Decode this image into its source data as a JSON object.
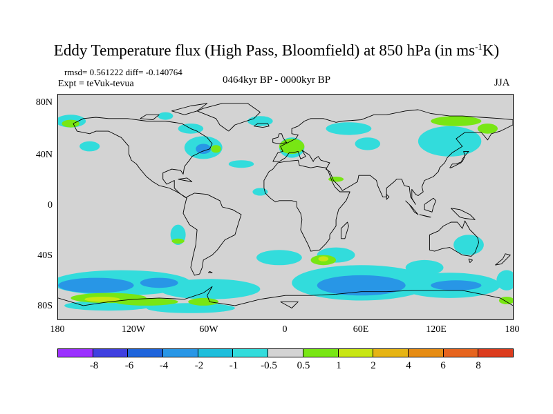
{
  "header": {
    "title_main": "Eddy Temperature flux (High Pass, Bloomfield) at 850 hPa (in ms",
    "title_sup": "-1",
    "title_end": "K)",
    "stats": "rmsd= 0.561222 diff= -0.140764",
    "expt": "Expt = teVuk-tevua",
    "period": "0464kyr BP - 0000kyr BP",
    "season": "JJA"
  },
  "axes": {
    "lat_labels": [
      "80N",
      "40N",
      "0",
      "40S",
      "80S"
    ],
    "lon_labels": [
      "180",
      "120W",
      "60W",
      "0",
      "60E",
      "120E",
      "180"
    ]
  },
  "colorbar": {
    "labels": [
      "-8",
      "-6",
      "-4",
      "-2",
      "-1",
      "-0.5",
      "0.5",
      "1",
      "2",
      "4",
      "6",
      "8"
    ],
    "colors": [
      "#9b30ff",
      "#4040e0",
      "#1e64dc",
      "#2896e6",
      "#1ebedc",
      "#32dcdc",
      "#d3d3d3",
      "#78e614",
      "#c8e614",
      "#e6b414",
      "#e68c14",
      "#e6641e",
      "#dc3c1e"
    ]
  },
  "map": {
    "background": "#d3d3d3",
    "regions": [
      {
        "color": "#32dcdc",
        "ellipses": [
          [
            -170,
            68,
            12,
            5
          ],
          [
            -75,
            62,
            10,
            4
          ],
          [
            -20,
            68,
            10,
            4
          ],
          [
            -65,
            47,
            15,
            9
          ],
          [
            5,
            47,
            10,
            8
          ],
          [
            50,
            62,
            18,
            5
          ],
          [
            130,
            52,
            25,
            12
          ],
          [
            65,
            50,
            10,
            5
          ],
          [
            -35,
            34,
            10,
            3
          ],
          [
            -95,
            72,
            6,
            3
          ],
          [
            -155,
            48,
            8,
            4
          ],
          [
            -20,
            12,
            6,
            3
          ],
          [
            -85,
            -22,
            6,
            8
          ],
          [
            40,
            -38,
            15,
            6
          ],
          [
            60,
            -60,
            55,
            14
          ],
          [
            130,
            -62,
            40,
            10
          ],
          [
            -130,
            -60,
            55,
            10
          ],
          [
            -60,
            -65,
            40,
            8
          ],
          [
            145,
            -30,
            12,
            8
          ],
          [
            110,
            -48,
            15,
            6
          ],
          [
            -5,
            -40,
            18,
            6
          ],
          [
            -140,
            -78,
            35,
            4
          ],
          [
            -75,
            -80,
            35,
            4
          ],
          [
            175,
            -58,
            8,
            8
          ]
        ]
      },
      {
        "color": "#2896e6",
        "ellipses": [
          [
            60,
            -62,
            35,
            8
          ],
          [
            -150,
            -62,
            30,
            6
          ],
          [
            -100,
            -60,
            15,
            4
          ],
          [
            -65,
            46,
            6,
            4
          ],
          [
            135,
            -62,
            20,
            4
          ]
        ]
      },
      {
        "color": "#78e614",
        "ellipses": [
          [
            -170,
            66,
            7,
            3
          ],
          [
            135,
            68,
            20,
            4
          ],
          [
            160,
            62,
            8,
            4
          ],
          [
            5,
            48,
            10,
            6
          ],
          [
            30,
            -42,
            10,
            4
          ],
          [
            -140,
            -72,
            30,
            4
          ],
          [
            -110,
            -75,
            25,
            3
          ],
          [
            -85,
            -27,
            5,
            2
          ],
          [
            -65,
            -75,
            12,
            3
          ],
          [
            175,
            -74,
            6,
            3
          ],
          [
            -55,
            46,
            4,
            3
          ],
          [
            40,
            22,
            6,
            2
          ]
        ]
      },
      {
        "color": "#c8e614",
        "ellipses": [
          [
            -145,
            -73,
            14,
            2
          ],
          [
            30,
            -41,
            4,
            2
          ]
        ]
      }
    ]
  },
  "coastlines": [
    [
      [
        -168,
        66
      ],
      [
        -160,
        70
      ],
      [
        -150,
        71
      ],
      [
        -140,
        70
      ],
      [
        -125,
        70
      ],
      [
        -110,
        68
      ],
      [
        -95,
        68
      ],
      [
        -82,
        66
      ],
      [
        -75,
        62
      ],
      [
        -70,
        60
      ],
      [
        -62,
        55
      ],
      [
        -58,
        50
      ],
      [
        -60,
        46
      ],
      [
        -66,
        44
      ],
      [
        -70,
        42
      ],
      [
        -74,
        40
      ],
      [
        -76,
        37
      ],
      [
        -80,
        32
      ],
      [
        -81,
        26
      ],
      [
        -83,
        29
      ],
      [
        -90,
        30
      ],
      [
        -97,
        27
      ],
      [
        -97,
        22
      ],
      [
        -94,
        18
      ],
      [
        -88,
        21
      ],
      [
        -88,
        15
      ],
      [
        -84,
        11
      ],
      [
        -80,
        8
      ],
      [
        -78,
        7
      ],
      [
        -81,
        9
      ],
      [
        -86,
        12
      ],
      [
        -92,
        15
      ],
      [
        -100,
        17
      ],
      [
        -105,
        20
      ],
      [
        -110,
        24
      ],
      [
        -115,
        30
      ],
      [
        -118,
        34
      ],
      [
        -122,
        37
      ],
      [
        -124,
        42
      ],
      [
        -124,
        48
      ],
      [
        -130,
        55
      ],
      [
        -140,
        60
      ],
      [
        -150,
        60
      ],
      [
        -155,
        58
      ],
      [
        -165,
        60
      ],
      [
        -168,
        66
      ]
    ],
    [
      [
        -78,
        8
      ],
      [
        -72,
        11
      ],
      [
        -62,
        10
      ],
      [
        -52,
        5
      ],
      [
        -50,
        0
      ],
      [
        -42,
        -2
      ],
      [
        -35,
        -6
      ],
      [
        -37,
        -12
      ],
      [
        -40,
        -22
      ],
      [
        -48,
        -26
      ],
      [
        -54,
        -34
      ],
      [
        -58,
        -38
      ],
      [
        -65,
        -42
      ],
      [
        -66,
        -48
      ],
      [
        -68,
        -53
      ],
      [
        -72,
        -54
      ],
      [
        -75,
        -48
      ],
      [
        -73,
        -38
      ],
      [
        -71,
        -30
      ],
      [
        -70,
        -18
      ],
      [
        -76,
        -14
      ],
      [
        -81,
        -5
      ],
      [
        -80,
        0
      ],
      [
        -78,
        8
      ]
    ],
    [
      [
        -45,
        60
      ],
      [
        -40,
        65
      ],
      [
        -25,
        70
      ],
      [
        -20,
        75
      ],
      [
        -30,
        82
      ],
      [
        -50,
        82
      ],
      [
        -65,
        78
      ],
      [
        -70,
        76
      ],
      [
        -55,
        70
      ],
      [
        -52,
        65
      ],
      [
        -45,
        60
      ]
    ],
    [
      [
        -10,
        36
      ],
      [
        -6,
        43
      ],
      [
        -2,
        44
      ],
      [
        -4,
        48
      ],
      [
        2,
        51
      ],
      [
        8,
        54
      ],
      [
        10,
        57
      ],
      [
        5,
        58
      ],
      [
        5,
        62
      ],
      [
        10,
        64
      ],
      [
        15,
        68
      ],
      [
        20,
        70
      ],
      [
        30,
        70
      ],
      [
        40,
        67
      ],
      [
        45,
        68
      ],
      [
        60,
        69
      ],
      [
        70,
        73
      ],
      [
        80,
        73
      ],
      [
        95,
        76
      ],
      [
        105,
        77
      ],
      [
        115,
        74
      ],
      [
        130,
        72
      ],
      [
        140,
        72
      ],
      [
        155,
        71
      ],
      [
        170,
        70
      ],
      [
        180,
        69
      ],
      [
        180,
        65
      ],
      [
        170,
        60
      ],
      [
        163,
        58
      ],
      [
        160,
        53
      ],
      [
        155,
        59
      ],
      [
        142,
        59
      ],
      [
        135,
        54
      ],
      [
        140,
        48
      ],
      [
        132,
        43
      ],
      [
        128,
        39
      ],
      [
        126,
        35
      ],
      [
        122,
        31
      ],
      [
        121,
        28
      ],
      [
        117,
        24
      ],
      [
        110,
        21
      ],
      [
        108,
        16
      ],
      [
        109,
        12
      ],
      [
        105,
        9
      ],
      [
        103,
        10
      ],
      [
        100,
        14
      ],
      [
        100,
        7
      ],
      [
        103,
        2
      ],
      [
        99,
        8
      ],
      [
        98,
        16
      ],
      [
        94,
        17
      ],
      [
        92,
        22
      ],
      [
        88,
        22
      ],
      [
        86,
        20
      ],
      [
        80,
        15
      ],
      [
        80,
        8
      ],
      [
        77,
        8
      ],
      [
        73,
        17
      ],
      [
        72,
        21
      ],
      [
        67,
        25
      ],
      [
        58,
        25
      ],
      [
        57,
        20
      ],
      [
        52,
        17
      ],
      [
        45,
        13
      ],
      [
        43,
        16
      ],
      [
        38,
        21
      ],
      [
        35,
        28
      ],
      [
        32,
        30
      ],
      [
        35,
        35
      ],
      [
        28,
        37
      ],
      [
        26,
        40
      ],
      [
        23,
        38
      ],
      [
        22,
        36
      ],
      [
        19,
        41
      ],
      [
        13,
        45
      ],
      [
        16,
        40
      ],
      [
        12,
        38
      ],
      [
        10,
        44
      ],
      [
        6,
        43
      ],
      [
        3,
        43
      ],
      [
        0,
        39
      ],
      [
        -5,
        36
      ],
      [
        -10,
        36
      ]
    ],
    [
      [
        -17,
        15
      ],
      [
        -17,
        21
      ],
      [
        -13,
        28
      ],
      [
        -10,
        30
      ],
      [
        -6,
        35
      ],
      [
        0,
        36
      ],
      [
        10,
        37
      ],
      [
        11,
        33
      ],
      [
        20,
        31
      ],
      [
        25,
        32
      ],
      [
        32,
        31
      ],
      [
        34,
        28
      ],
      [
        37,
        20
      ],
      [
        39,
        16
      ],
      [
        43,
        12
      ],
      [
        51,
        12
      ],
      [
        48,
        5
      ],
      [
        42,
        -2
      ],
      [
        40,
        -10
      ],
      [
        40,
        -15
      ],
      [
        35,
        -22
      ],
      [
        35,
        -25
      ],
      [
        32,
        -29
      ],
      [
        27,
        -34
      ],
      [
        20,
        -35
      ],
      [
        18,
        -30
      ],
      [
        12,
        -18
      ],
      [
        13,
        -10
      ],
      [
        12,
        -5
      ],
      [
        9,
        0
      ],
      [
        9,
        4
      ],
      [
        5,
        5
      ],
      [
        0,
        5
      ],
      [
        -5,
        5
      ],
      [
        -8,
        4
      ],
      [
        -12,
        7
      ],
      [
        -16,
        11
      ],
      [
        -17,
        15
      ]
    ],
    [
      [
        44,
        -25
      ],
      [
        47,
        -25
      ],
      [
        50,
        -15
      ],
      [
        49,
        -12
      ],
      [
        44,
        -17
      ],
      [
        44,
        -25
      ]
    ],
    [
      [
        114,
        -22
      ],
      [
        114,
        -34
      ],
      [
        118,
        -35
      ],
      [
        124,
        -33
      ],
      [
        130,
        -32
      ],
      [
        135,
        -35
      ],
      [
        140,
        -38
      ],
      [
        147,
        -39
      ],
      [
        150,
        -36
      ],
      [
        153,
        -28
      ],
      [
        152,
        -24
      ],
      [
        146,
        -18
      ],
      [
        142,
        -11
      ],
      [
        140,
        -17
      ],
      [
        136,
        -12
      ],
      [
        131,
        -12
      ],
      [
        125,
        -15
      ],
      [
        121,
        -19
      ],
      [
        114,
        -22
      ]
    ],
    [
      [
        -10,
        51
      ],
      [
        -10,
        54
      ],
      [
        -6,
        55
      ],
      [
        -5,
        58
      ],
      [
        -3,
        58
      ],
      [
        -2,
        55
      ],
      [
        0,
        52
      ],
      [
        1,
        51
      ],
      [
        -5,
        50
      ],
      [
        -10,
        51
      ]
    ],
    [
      [
        130,
        31
      ],
      [
        132,
        34
      ],
      [
        135,
        34
      ],
      [
        140,
        36
      ],
      [
        142,
        40
      ],
      [
        141,
        44
      ],
      [
        145,
        44
      ],
      [
        140,
        38
      ],
      [
        139,
        35
      ],
      [
        131,
        31
      ],
      [
        130,
        31
      ]
    ],
    [
      [
        95,
        5
      ],
      [
        100,
        0
      ],
      [
        105,
        -6
      ],
      [
        102,
        -4
      ],
      [
        98,
        2
      ],
      [
        95,
        5
      ]
    ],
    [
      [
        106,
        -6
      ],
      [
        115,
        -8
      ],
      [
        114,
        -8
      ],
      [
        106,
        -6
      ]
    ],
    [
      [
        110,
        2
      ],
      [
        117,
        7
      ],
      [
        119,
        5
      ],
      [
        117,
        0
      ],
      [
        116,
        -4
      ],
      [
        110,
        -2
      ],
      [
        110,
        2
      ]
    ],
    [
      [
        131,
        -1
      ],
      [
        138,
        -2
      ],
      [
        146,
        -6
      ],
      [
        150,
        -10
      ],
      [
        142,
        -9
      ],
      [
        138,
        -8
      ],
      [
        131,
        -1
      ]
    ],
    [
      [
        166,
        -46
      ],
      [
        172,
        -41
      ],
      [
        174,
        -37
      ],
      [
        178,
        -38
      ],
      [
        175,
        -41
      ],
      [
        171,
        -45
      ],
      [
        166,
        -46
      ]
    ],
    [
      [
        -180,
        -72
      ],
      [
        -160,
        -78
      ],
      [
        -140,
        -75
      ],
      [
        -120,
        -73
      ],
      [
        -100,
        -72
      ],
      [
        -80,
        -73
      ],
      [
        -65,
        -68
      ],
      [
        -58,
        -63
      ],
      [
        -62,
        -70
      ],
      [
        -60,
        -75
      ],
      [
        -40,
        -78
      ],
      [
        -20,
        -73
      ],
      [
        0,
        -70
      ],
      [
        20,
        -70
      ],
      [
        40,
        -69
      ],
      [
        60,
        -67
      ],
      [
        80,
        -67
      ],
      [
        100,
        -66
      ],
      [
        120,
        -66
      ],
      [
        140,
        -66
      ],
      [
        160,
        -70
      ],
      [
        170,
        -72
      ],
      [
        180,
        -78
      ]
    ],
    [
      [
        -25,
        64
      ],
      [
        -22,
        66
      ],
      [
        -14,
        66
      ],
      [
        -13,
        64
      ],
      [
        -18,
        63
      ],
      [
        -25,
        64
      ]
    ],
    [
      [
        -80,
        73
      ],
      [
        -90,
        76
      ],
      [
        -75,
        80
      ],
      [
        -62,
        82
      ],
      [
        -70,
        76
      ],
      [
        -80,
        73
      ]
    ],
    [
      [
        -115,
        70
      ],
      [
        -110,
        73
      ],
      [
        -100,
        73
      ],
      [
        -105,
        69
      ],
      [
        -115,
        70
      ]
    ],
    [
      [
        -85,
        22
      ],
      [
        -78,
        23
      ],
      [
        -74,
        20
      ],
      [
        -80,
        21
      ],
      [
        -85,
        22
      ]
    ],
    [
      [
        -60,
        -51
      ],
      [
        -58,
        -52
      ],
      [
        -61,
        -52
      ],
      [
        -60,
        -51
      ]
    ],
    [
      [
        145,
        -41
      ],
      [
        148,
        -42
      ],
      [
        146,
        -44
      ],
      [
        145,
        -41
      ]
    ],
    [
      [
        80,
        10
      ],
      [
        82,
        8
      ],
      [
        80,
        6
      ],
      [
        80,
        10
      ]
    ],
    [
      [
        -4,
        -75
      ],
      [
        10,
        -75
      ],
      [
        5,
        -80
      ],
      [
        -4,
        -75
      ]
    ]
  ]
}
